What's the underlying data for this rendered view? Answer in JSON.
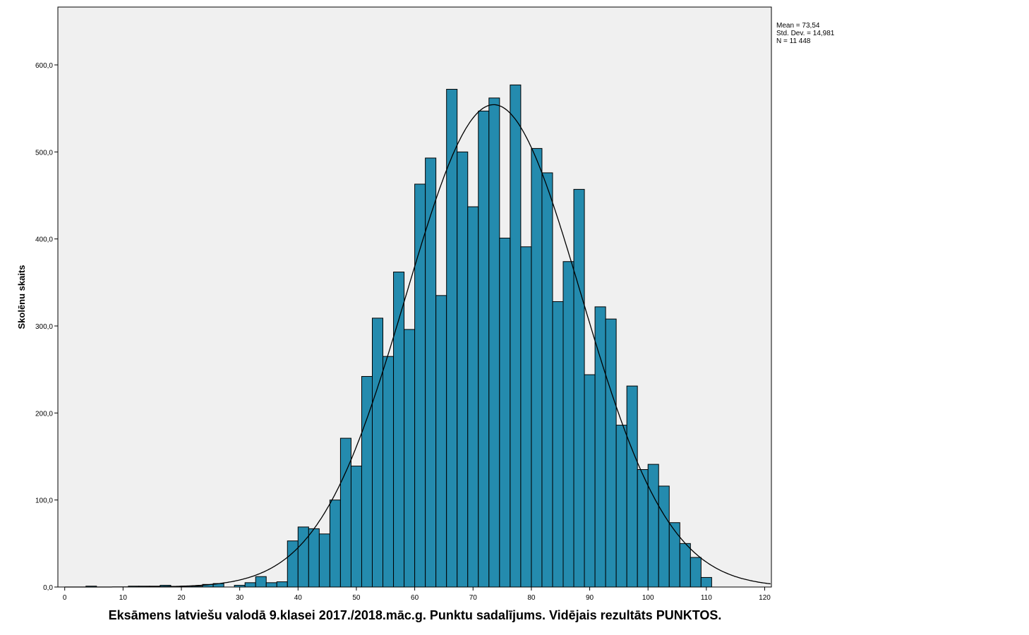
{
  "chart_data": {
    "type": "bar",
    "subtype": "histogram",
    "title": "",
    "xlabel": "Eksāmens latviešu valodā 9.klasei 2017./2018.māc.g. Punktu sadalījums. Vidējais rezultāts PUNKTOS.",
    "ylabel": "Skolēnu skaits",
    "xlim": [
      -1,
      121
    ],
    "ylim": [
      0,
      665
    ],
    "x_ticks": [
      0,
      10,
      20,
      30,
      40,
      50,
      60,
      70,
      80,
      90,
      100,
      110,
      120
    ],
    "x_tick_labels": [
      "0",
      "10",
      "20",
      "30",
      "40",
      "50",
      "60",
      "70",
      "80",
      "90",
      "100",
      "110",
      "120"
    ],
    "y_ticks": [
      0,
      100,
      200,
      300,
      400,
      500,
      600
    ],
    "y_tick_labels": [
      "0,0",
      "100,0",
      "200,0",
      "300,0",
      "400,0",
      "500,0",
      "600,0"
    ],
    "bin_start": 0,
    "bin_width": 1.8182,
    "counts": [
      0,
      0,
      1,
      0,
      0,
      0,
      1,
      1,
      1,
      2,
      0,
      1,
      1,
      3,
      4,
      0,
      2,
      5,
      12,
      5,
      6,
      53,
      69,
      67,
      61,
      100,
      171,
      139,
      242,
      309,
      265,
      362,
      296,
      463,
      493,
      335,
      572,
      500,
      437,
      547,
      562,
      401,
      577,
      391,
      504,
      476,
      328,
      374,
      457,
      244,
      322,
      308,
      186,
      231,
      135,
      141,
      116,
      74,
      50,
      34,
      11
    ],
    "normal_curve": {
      "mean": 73.54,
      "sd": 14.981,
      "n": 11448
    },
    "stats_lines": [
      "Mean = 73,54",
      "Std. Dev. = 14,981",
      "N = 11 448"
    ],
    "grid": false,
    "bar_color": "#248BAE",
    "plot_bg": "#F0F0F0"
  }
}
